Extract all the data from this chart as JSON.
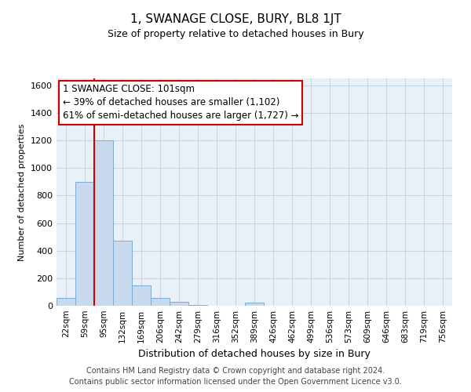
{
  "title": "1, SWANAGE CLOSE, BURY, BL8 1JT",
  "subtitle": "Size of property relative to detached houses in Bury",
  "xlabel": "Distribution of detached houses by size in Bury",
  "ylabel": "Number of detached properties",
  "footer_line1": "Contains HM Land Registry data © Crown copyright and database right 2024.",
  "footer_line2": "Contains public sector information licensed under the Open Government Licence v3.0.",
  "bin_labels": [
    "22sqm",
    "59sqm",
    "95sqm",
    "132sqm",
    "169sqm",
    "206sqm",
    "242sqm",
    "279sqm",
    "316sqm",
    "352sqm",
    "389sqm",
    "426sqm",
    "462sqm",
    "499sqm",
    "536sqm",
    "573sqm",
    "609sqm",
    "646sqm",
    "683sqm",
    "719sqm",
    "756sqm"
  ],
  "bar_values": [
    55,
    900,
    1200,
    470,
    150,
    55,
    30,
    5,
    0,
    0,
    25,
    0,
    0,
    0,
    0,
    0,
    0,
    0,
    0,
    0,
    0
  ],
  "bar_color": "#c8d9ed",
  "bar_edge_color": "#7aadd4",
  "axes_bg_color": "#e8f0f8",
  "ylim": [
    0,
    1650
  ],
  "yticks": [
    0,
    200,
    400,
    600,
    800,
    1000,
    1200,
    1400,
    1600
  ],
  "vline_color": "#cc0000",
  "vline_x_index": 2,
  "annotation_line1": "1 SWANAGE CLOSE: 101sqm",
  "annotation_line2": "← 39% of detached houses are smaller (1,102)",
  "annotation_line3": "61% of semi-detached houses are larger (1,727) →",
  "background_color": "#ffffff",
  "grid_color": "#c8d4e0",
  "title_fontsize": 11,
  "subtitle_fontsize": 9,
  "xlabel_fontsize": 9,
  "ylabel_fontsize": 8,
  "tick_fontsize": 8,
  "xtick_fontsize": 7.5,
  "footer_fontsize": 7,
  "annot_fontsize": 8.5
}
